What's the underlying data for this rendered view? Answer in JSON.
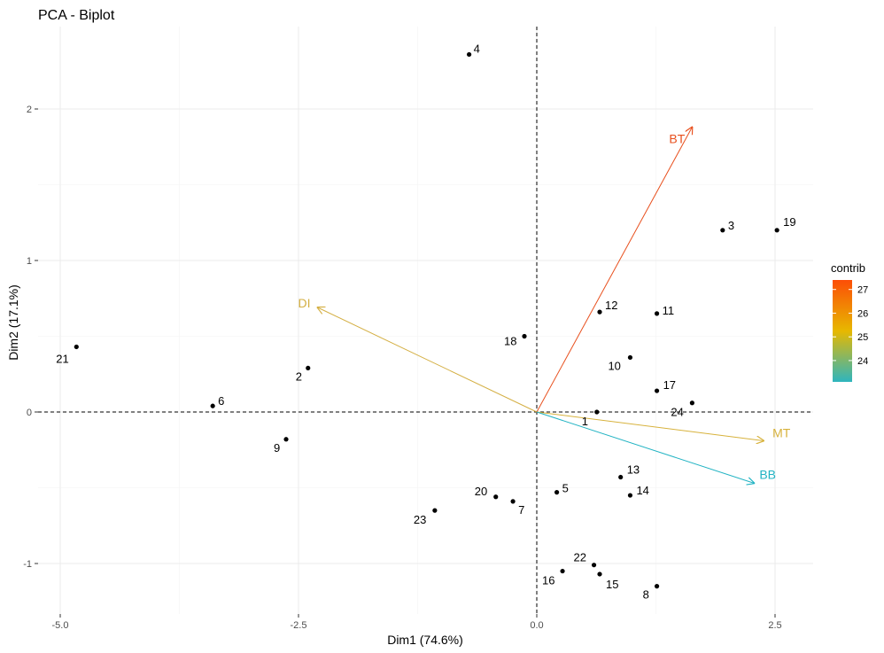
{
  "chart_data": {
    "type": "scatter",
    "title": "PCA - Biplot",
    "xlabel": "Dim1 (74.6%)",
    "ylabel": "Dim2 (17.1%)",
    "xlim": [
      -5.0,
      2.9
    ],
    "ylim": [
      -1.32,
      2.52
    ],
    "x_ticks": [
      -5.0,
      -2.5,
      0.0,
      2.5
    ],
    "x_tick_labels": [
      "-5.0",
      "-2.5",
      "0.0",
      "2.5"
    ],
    "y_ticks": [
      -1,
      0,
      1,
      2
    ],
    "y_tick_labels": [
      "-1",
      "0",
      "1",
      "2"
    ],
    "grid": true,
    "reference_lines": {
      "x": 0,
      "y": 0,
      "style": "dashed"
    },
    "points": [
      {
        "label": "1",
        "x": 0.63,
        "y": 0.0
      },
      {
        "label": "2",
        "x": -2.4,
        "y": 0.29
      },
      {
        "label": "3",
        "x": 1.95,
        "y": 1.2
      },
      {
        "label": "4",
        "x": -0.71,
        "y": 2.36
      },
      {
        "label": "5",
        "x": 0.21,
        "y": -0.53
      },
      {
        "label": "6",
        "x": -3.4,
        "y": 0.04
      },
      {
        "label": "7",
        "x": -0.25,
        "y": -0.59
      },
      {
        "label": "8",
        "x": 1.26,
        "y": -1.15
      },
      {
        "label": "9",
        "x": -2.63,
        "y": -0.18
      },
      {
        "label": "10",
        "x": 0.98,
        "y": 0.36
      },
      {
        "label": "11",
        "x": 1.26,
        "y": 0.65
      },
      {
        "label": "12",
        "x": 0.66,
        "y": 0.66
      },
      {
        "label": "13",
        "x": 0.88,
        "y": -0.43
      },
      {
        "label": "14",
        "x": 0.98,
        "y": -0.55
      },
      {
        "label": "15",
        "x": 0.66,
        "y": -1.07
      },
      {
        "label": "16",
        "x": 0.27,
        "y": -1.05
      },
      {
        "label": "17",
        "x": 1.26,
        "y": 0.14
      },
      {
        "label": "18",
        "x": -0.13,
        "y": 0.5
      },
      {
        "label": "19",
        "x": 2.52,
        "y": 1.2
      },
      {
        "label": "20",
        "x": -0.43,
        "y": -0.56
      },
      {
        "label": "21",
        "x": -4.83,
        "y": 0.43
      },
      {
        "label": "22",
        "x": 0.6,
        "y": -1.01
      },
      {
        "label": "23",
        "x": -1.07,
        "y": -0.65
      },
      {
        "label": "24",
        "x": 1.63,
        "y": 0.06
      }
    ],
    "variables": [
      {
        "name": "BT",
        "x": 1.63,
        "y": 1.88,
        "contrib": 27.2,
        "color": "#E8501E"
      },
      {
        "name": "DI",
        "x": -2.3,
        "y": 0.69,
        "contrib": 25.2,
        "color": "#D4AF43"
      },
      {
        "name": "MT",
        "x": 2.38,
        "y": -0.19,
        "contrib": 24.8,
        "color": "#D7B23C"
      },
      {
        "name": "BB",
        "x": 2.28,
        "y": -0.47,
        "contrib": 23.2,
        "color": "#21B3C3"
      }
    ],
    "legend": {
      "title": "contrib",
      "placement": "right",
      "min": 23.1,
      "max": 27.4,
      "ticks": [
        24,
        25,
        26,
        27
      ],
      "tick_labels": [
        "24",
        "25",
        "26",
        "27"
      ],
      "gradient": [
        "#2EB5BE",
        "#E7B800",
        "#FC4E07"
      ]
    }
  }
}
